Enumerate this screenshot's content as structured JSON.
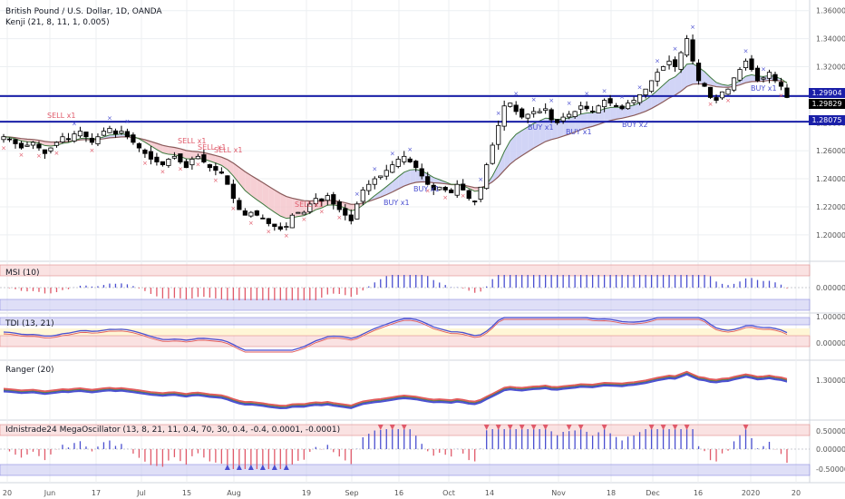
{
  "header": {
    "title": "British Pound / U.S. Dollar, 1D, OANDA",
    "indicator": "Kenji (21, 8, 11, 1, 0.005)"
  },
  "panels": {
    "msi": "MSI (10)",
    "tdi": "TDI (13, 21)",
    "ranger": "Ranger (20)",
    "mega": "Idnistrade24 MegaOscillator (13, 8, 21, 11, 0.4, 70, 30, 0.4, -0.4, 0.0001, -0.0001)"
  },
  "colors": {
    "bg": "#ffffff",
    "grid": "#eceff2",
    "hline": "#1a1fa8",
    "bull": "#ffffff",
    "bear": "#000000",
    "sell_text": "#e05a6a",
    "buy_text": "#4a4fd0",
    "cloud_bear": "#f4c7cc",
    "cloud_bull": "#c9ccf4",
    "ma_red": "#8a5a5a",
    "ma_green": "#3e7a3e",
    "band_red": "#f5c6c6",
    "band_blue": "#c9c9f2",
    "ranger_red": "#e05a5a",
    "ranger_blue": "#4a4fd0",
    "ranger_green": "#3e8a3e",
    "price_tag_blue": "#1a1fa8",
    "price_tag_black": "#000000"
  },
  "chart_data": {
    "type": "candlestick",
    "symbol": "GBPUSD",
    "interval": "1D",
    "x_tick_labels": [
      "20",
      "Jun",
      "17",
      "Jul",
      "15",
      "Aug",
      "19",
      "Sep",
      "16",
      "Oct",
      "14",
      "Nov",
      "18",
      "Dec",
      "16",
      "2020",
      "20"
    ],
    "price_axis": {
      "ticks": [
        "1.36000",
        "1.34000",
        "1.32000",
        "1.30000",
        "1.28000",
        "1.26000",
        "1.24000",
        "1.22000",
        "1.20000"
      ],
      "ylim": [
        1.185,
        1.365
      ]
    },
    "horizontal_lines": [
      {
        "value": 1.29904,
        "label": "1.29904"
      },
      {
        "value": 1.28075,
        "label": "1.28075"
      }
    ],
    "last_price": {
      "value": 1.29829,
      "label": "1.29829"
    },
    "signals": [
      {
        "label": "SELL x1"
      },
      {
        "label": "SELL x1"
      },
      {
        "label": "SELL x1"
      },
      {
        "label": "SELL x1"
      },
      {
        "label": "SELL x1"
      },
      {
        "label": "BUY x1"
      },
      {
        "label": "BUY x1"
      },
      {
        "label": "BUY x1"
      },
      {
        "label": "BUY x1"
      },
      {
        "label": "BUY x2"
      },
      {
        "label": "BUY x1"
      }
    ],
    "msi_axis": [
      "0.00000"
    ],
    "tdi_axis": [
      "1.00000",
      "0.00000"
    ],
    "ranger_axis": [
      "1.30000"
    ],
    "mega_axis": [
      "0.50000",
      "0.00000",
      "-0.50000"
    ],
    "close_series": [
      1.27,
      1.268,
      1.265,
      1.262,
      1.264,
      1.266,
      1.262,
      1.258,
      1.262,
      1.266,
      1.27,
      1.268,
      1.272,
      1.274,
      1.27,
      1.266,
      1.27,
      1.274,
      1.276,
      1.272,
      1.274,
      1.27,
      1.266,
      1.262,
      1.258,
      1.254,
      1.252,
      1.25,
      1.254,
      1.256,
      1.252,
      1.248,
      1.254,
      1.256,
      1.252,
      1.248,
      1.246,
      1.244,
      1.236,
      1.226,
      1.218,
      1.214,
      1.216,
      1.214,
      1.212,
      1.208,
      1.206,
      1.204,
      1.206,
      1.214,
      1.216,
      1.216,
      1.222,
      1.226,
      1.224,
      1.228,
      1.222,
      1.218,
      1.214,
      1.21,
      1.222,
      1.232,
      1.236,
      1.24,
      1.242,
      1.246,
      1.25,
      1.254,
      1.256,
      1.252,
      1.248,
      1.242,
      1.236,
      1.232,
      1.234,
      1.232,
      1.23,
      1.236,
      1.232,
      1.226,
      1.224,
      1.234,
      1.25,
      1.264,
      1.278,
      1.292,
      1.294,
      1.288,
      1.284,
      1.286,
      1.288,
      1.288,
      1.29,
      1.282,
      1.28,
      1.284,
      1.286,
      1.288,
      1.292,
      1.29,
      1.288,
      1.292,
      1.296,
      1.294,
      1.292,
      1.29,
      1.294,
      1.296,
      1.3,
      1.304,
      1.31,
      1.316,
      1.32,
      1.324,
      1.32,
      1.33,
      1.34,
      1.324,
      1.31,
      1.306,
      1.298,
      1.296,
      1.302,
      1.304,
      1.312,
      1.318,
      1.324,
      1.318,
      1.31,
      1.312,
      1.316,
      1.31,
      1.306,
      1.298
    ]
  }
}
